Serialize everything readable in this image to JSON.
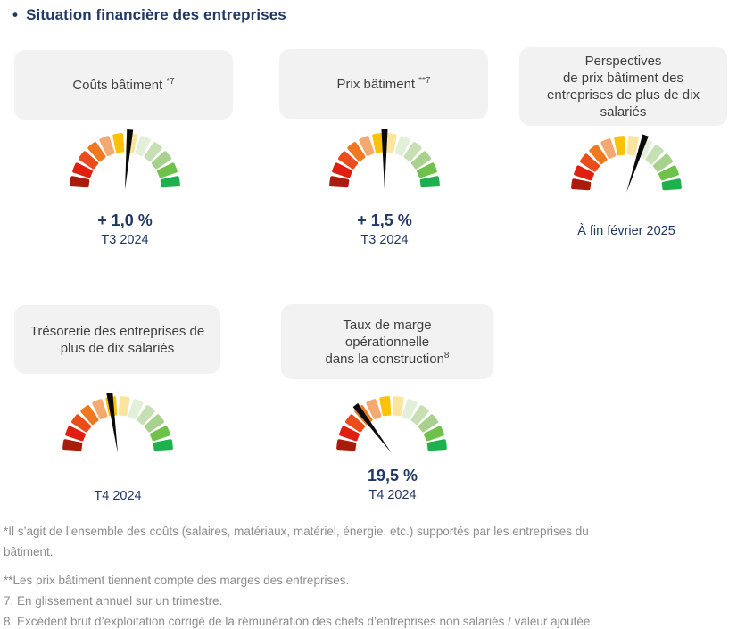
{
  "page": {
    "bullet": "•",
    "title": "Situation financière des entreprises"
  },
  "palette": {
    "navy": "#1F3864",
    "card_bg": "#F2F2F2",
    "card_text": "#3F3F3F",
    "footnote_gray": "#8C8C8C",
    "background": "#FFFFFF"
  },
  "gauge_style": {
    "segment_colors": [
      "#A91B0B",
      "#E01F10",
      "#EA4C1B",
      "#F0791F",
      "#F5A86F",
      "#FCC108",
      "#FBE49E",
      "#E2EFD9",
      "#C6E0B4",
      "#A9D18E",
      "#6EC24A",
      "#1DB14E"
    ],
    "outer_radius": 60,
    "inner_radius": 42.5,
    "segment_stroke": 4,
    "gap_degrees": 7.4,
    "needle_color": "#0A0A0A",
    "needle_length": 66,
    "needle_tip_width": 7,
    "scale_note": "qualitative half-dial, 12 segments from red (left) to green (right), no tick labels",
    "angle_convention": "needle_angle_deg from vertical; positive leans right toward green, negative leans left toward red"
  },
  "chart_data": [
    {
      "type": "gauge",
      "id": 1,
      "title": "Coûts bâtiment *7",
      "title_lines": [
        "Coûts bâtiment"
      ],
      "title_sup": "*7",
      "value_label": "+ 1,0 %",
      "period": "T3 2024",
      "needle_angle_deg": 5
    },
    {
      "type": "gauge",
      "id": 2,
      "title": "Prix bâtiment **7",
      "title_lines": [
        "Prix bâtiment"
      ],
      "title_sup": "**7",
      "value_label": "+ 1,5 %",
      "period": "T3 2024",
      "needle_angle_deg": 0
    },
    {
      "type": "gauge",
      "id": 3,
      "title": "Perspectives de prix bâtiment des entreprises de plus de dix salariés",
      "title_lines": [
        "Perspectives",
        "de prix bâtiment des",
        "entreprises de plus de dix",
        "salariés"
      ],
      "title_sup": "",
      "value_label": "",
      "period": "À fin février 2025",
      "needle_angle_deg": 19
    },
    {
      "type": "gauge",
      "id": 4,
      "title": "Trésorerie des entreprises de plus de dix salariés",
      "title_lines": [
        "Trésorerie des entreprises de",
        "plus de dix salariés"
      ],
      "title_sup": "",
      "value_label": "",
      "period": "T4 2024",
      "needle_angle_deg": -8
    },
    {
      "type": "gauge",
      "id": 5,
      "title": "Taux de marge opérationnelle dans la construction 8",
      "title_lines": [
        "Taux de marge",
        "opérationnelle",
        "dans la construction"
      ],
      "title_sup": "8",
      "value_label": "19,5 %",
      "period": "T4 2024",
      "needle_angle_deg": -38
    }
  ],
  "footnotes": {
    "lines": [
      "*Il s’agit de l’ensemble des coûts (salaires, matériaux, matériel, énergie, etc.) supportés par les entreprises du",
      "bâtiment.",
      "**Les prix bâtiment tiennent compte des marges des entreprises.",
      "7. En glissement annuel sur un trimestre.",
      "8. Excédent brut d’exploitation corrigé de la rémunération des chefs d’entreprises non salariés / valeur ajoutée."
    ]
  }
}
